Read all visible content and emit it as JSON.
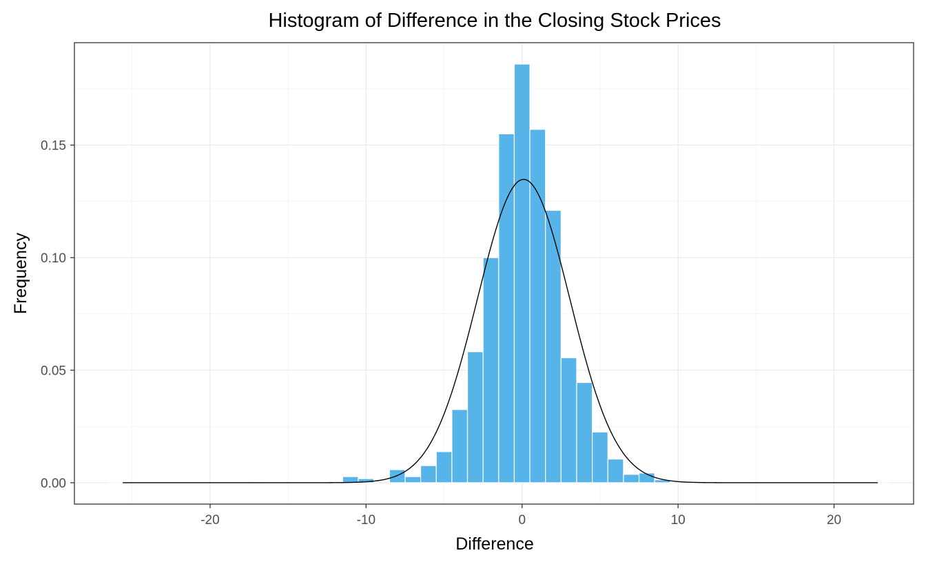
{
  "chart_data": {
    "type": "bar",
    "title": "Histogram of Difference in the Closing Stock Prices",
    "xlabel": "Difference",
    "ylabel": "Frequency",
    "xlim": [
      -28.7,
      25.1
    ],
    "ylim": [
      -0.0095,
      0.1955
    ],
    "x_ticks": [
      -20,
      -10,
      0,
      10,
      20
    ],
    "x_tick_labels": [
      "-20",
      "-10",
      "0",
      "10",
      "20"
    ],
    "y_ticks": [
      0.0,
      0.05,
      0.1,
      0.15
    ],
    "y_tick_labels": [
      "0.00",
      "0.05",
      "0.10",
      "0.15"
    ],
    "grid": true,
    "bin_width": 1,
    "bars_color": "#56B4E9",
    "bars_outline_color": "#ffffff",
    "curve_color": "#000000",
    "bins": [
      {
        "x": -26,
        "value": 0.0004
      },
      {
        "x": -17,
        "value": 0.0004
      },
      {
        "x": -11,
        "value": 0.0027
      },
      {
        "x": -10,
        "value": 0.0018
      },
      {
        "x": -8,
        "value": 0.0058
      },
      {
        "x": -7,
        "value": 0.0027
      },
      {
        "x": -6,
        "value": 0.0076
      },
      {
        "x": -5,
        "value": 0.0138
      },
      {
        "x": -4,
        "value": 0.0325
      },
      {
        "x": -3,
        "value": 0.0582
      },
      {
        "x": -2,
        "value": 0.1
      },
      {
        "x": -1,
        "value": 0.155
      },
      {
        "x": 0,
        "value": 0.186
      },
      {
        "x": 1,
        "value": 0.157
      },
      {
        "x": 2,
        "value": 0.121
      },
      {
        "x": 3,
        "value": 0.0555
      },
      {
        "x": 4,
        "value": 0.0445
      },
      {
        "x": 5,
        "value": 0.0225
      },
      {
        "x": 6,
        "value": 0.0105
      },
      {
        "x": 7,
        "value": 0.0037
      },
      {
        "x": 8,
        "value": 0.0043
      },
      {
        "x": 9,
        "value": 0.0013
      },
      {
        "x": 11,
        "value": 0.0004
      },
      {
        "x": 12,
        "value": 0.0004
      },
      {
        "x": 15,
        "value": 0.0004
      },
      {
        "x": 23,
        "value": 0.0004
      }
    ],
    "normal_curve": {
      "mean": 0.1,
      "sd": 2.96,
      "x_range": [
        -25.6,
        22.8
      ]
    }
  }
}
